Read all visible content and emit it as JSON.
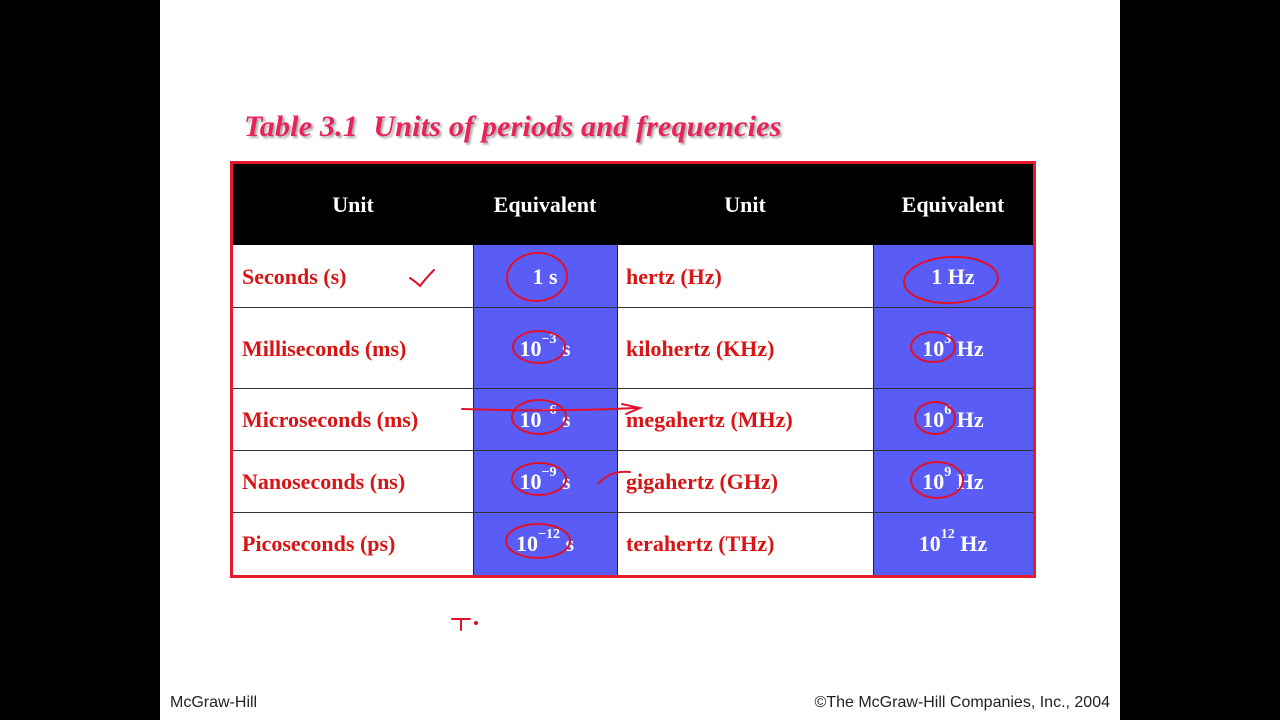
{
  "title": "Table 3.1  Units of periods and frequencies",
  "table": {
    "headers": [
      "Unit",
      "Equivalent",
      "Unit",
      "Equivalent"
    ],
    "rows": [
      {
        "period_unit": "Seconds (s)",
        "period_base": "1 s",
        "period_exp": "",
        "period_suffix": "",
        "freq_unit": "hertz (Hz)",
        "freq_base": "1 Hz",
        "freq_exp": "",
        "freq_suffix": ""
      },
      {
        "period_unit": "Milliseconds (ms)",
        "period_base": "10",
        "period_exp": "−3",
        "period_suffix": " s",
        "freq_unit": "kilohertz (KHz)",
        "freq_base": "10",
        "freq_exp": "3",
        "freq_suffix": " Hz"
      },
      {
        "period_unit": "Microseconds (ms)",
        "period_base": "10",
        "period_exp": "−6",
        "period_suffix": " s",
        "freq_unit": "megahertz (MHz)",
        "freq_base": "10",
        "freq_exp": "6",
        "freq_suffix": " Hz"
      },
      {
        "period_unit": "Nanoseconds (ns)",
        "period_base": "10",
        "period_exp": "−9",
        "period_suffix": " s",
        "freq_unit": "gigahertz (GHz)",
        "freq_base": "10",
        "freq_exp": "9",
        "freq_suffix": " Hz"
      },
      {
        "period_unit": "Picoseconds (ps)",
        "period_base": "10",
        "period_exp": "−12",
        "period_suffix": " s",
        "freq_unit": "terahertz (THz)",
        "freq_base": "10",
        "freq_exp": "12",
        "freq_suffix": " Hz"
      }
    ]
  },
  "footer": {
    "left": "McGraw-Hill",
    "right": "©The McGraw-Hill Companies, Inc., 2004"
  },
  "colors": {
    "title": "#e8235a",
    "border": "#e8192c",
    "equivalent_fill": "#5a5cf6",
    "unit_text": "#d81414",
    "annotation_ink": "#e0102a"
  }
}
